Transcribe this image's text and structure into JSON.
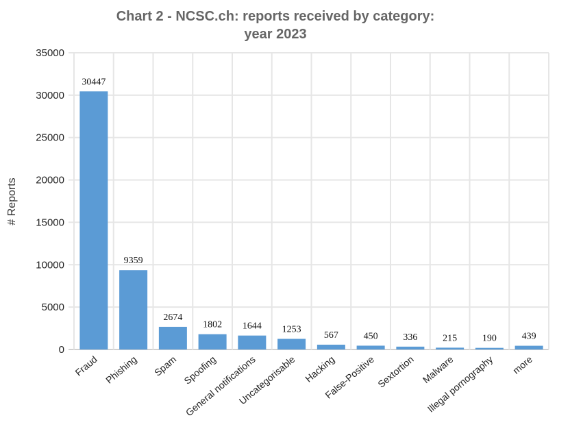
{
  "chart_data": {
    "type": "bar",
    "title_lines": [
      "Chart 2 - NCSC.ch: reports received by category:",
      "year 2023"
    ],
    "xlabel": "",
    "ylabel": "# Reports",
    "ylim": [
      0,
      35000
    ],
    "yticks": [
      "0",
      "5000",
      "10000",
      "15000",
      "20000",
      "25000",
      "30000",
      "35000"
    ],
    "grid": true,
    "categories": [
      "Fraud",
      "Phishing",
      "Spam",
      "Spoofing",
      "General notifications",
      "Uncategorisable",
      "Hacking",
      "False-Positive",
      "Sextortion",
      "Malware",
      "Illegal pornography",
      "more"
    ],
    "values": [
      30447,
      9359,
      2674,
      1802,
      1644,
      1253,
      567,
      450,
      336,
      215,
      190,
      439
    ],
    "data_labels": [
      "30447",
      "9359",
      "2674",
      "1802",
      "1644",
      "1253",
      "567",
      "450",
      "336",
      "215",
      "190",
      "439"
    ],
    "bar_color": "#5b9bd5"
  }
}
